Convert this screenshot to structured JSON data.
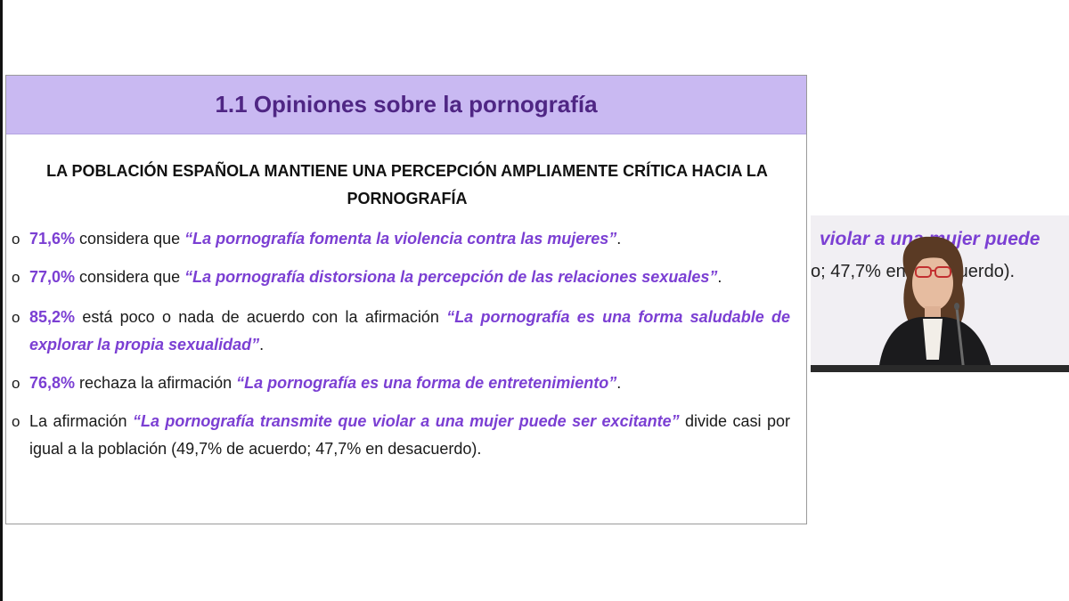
{
  "slide": {
    "title": "1.1 Opiniones sobre la pornografía",
    "subtitle_line1": "LA POBLACIÓN ESPAÑOLA MANTIENE UNA PERCEPCIÓN AMPLIAMENTE CRÍTICA HACIA LA",
    "subtitle_line2": "PORNOGRAFÍA",
    "bullet_marker": "o",
    "bullets": [
      {
        "pct": "71,6%",
        "text": " considera que ",
        "quote": "“La pornografía fomenta la violencia contra las mujeres”",
        "tail": "."
      },
      {
        "pct": "77,0%",
        "text": " considera que ",
        "quote": "“La pornografía distorsiona la percepción de las relaciones sexuales”",
        "tail": "."
      },
      {
        "pct": "85,2%",
        "text": " está poco o nada de acuerdo con la afirmación ",
        "quote": "“La pornografía es una forma saludable de explorar la propia sexualidad”",
        "tail": "."
      },
      {
        "pct": "76,8%",
        "text": " rechaza la afirmación ",
        "quote": "“La pornografía es una forma de entretenimiento”",
        "tail": "."
      },
      {
        "lead": "La afirmación ",
        "quote": "“La pornografía transmite que violar a una mujer puede ser excitante”",
        "tail": " divide casi por igual a la población (49,7% de acuerdo; 47,7% en desacuerdo)."
      }
    ]
  },
  "video_feed": {
    "line1": "violar a una mujer puede ",
    "line2": "o; 47,7% en desacuerdo)."
  },
  "colors": {
    "accent": "#7b3fd3",
    "header_bg": "#c9b9f2",
    "title": "#4f2684"
  }
}
